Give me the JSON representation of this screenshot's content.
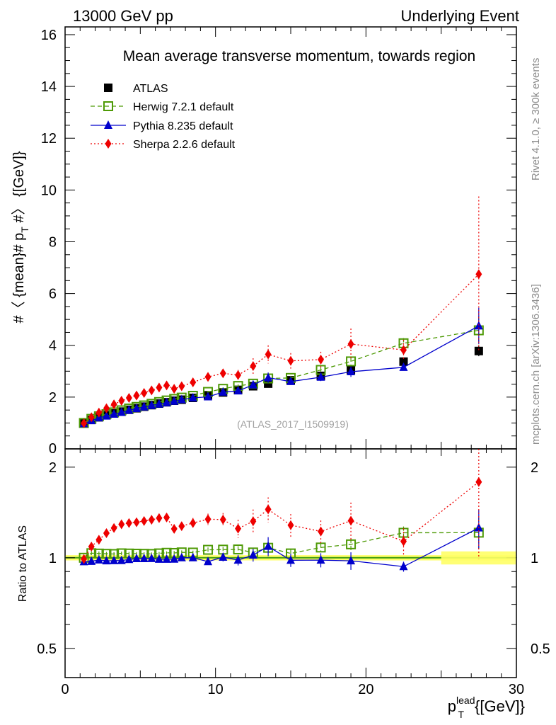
{
  "header": {
    "left": "13000 GeV pp",
    "right": "Underlying Event",
    "title": "Mean average transverse momentum, towards region",
    "watermark": "(ATLAS_2017_I1509919)",
    "side_top": "Rivet 4.1.0, ≥ 300k events",
    "side_bottom": "mcplots.cern.ch [arXiv:1306.3436]"
  },
  "chart_data": {
    "type": "scatter",
    "xlabel": "p_T^lead [GeV]",
    "xlabel_base": "p",
    "xlabel_sub": "T",
    "xlabel_sup": "lead",
    "xlabel_unit": "{[GeV]}",
    "ylabel": "#〈 {mean}# p_T #〉 [GeV]",
    "ylabel_a": "#〈 {mean}# p",
    "ylabel_sub": "T",
    "ylabel_b": " #〉 {[GeV]}",
    "ratio_ylabel": "Ratio to ATLAS",
    "xlim": [
      0,
      30
    ],
    "ylim": [
      0,
      16.3
    ],
    "ratio_ylim": [
      0.4,
      2.3
    ],
    "x_ticks": [
      0,
      10,
      20,
      30
    ],
    "y_ticks": [
      2,
      4,
      6,
      8,
      10,
      12,
      14,
      16
    ],
    "y_zero_label": "0",
    "ratio_ticks": [
      0.5,
      1,
      2
    ],
    "ratio_tick_labels": [
      "0.5",
      "1",
      "2"
    ],
    "x": [
      1.25,
      1.75,
      2.25,
      2.75,
      3.25,
      3.75,
      4.25,
      4.75,
      5.25,
      5.75,
      6.25,
      6.75,
      7.25,
      7.75,
      8.5,
      9.5,
      10.5,
      11.5,
      12.5,
      13.5,
      15.0,
      17.0,
      19.0,
      22.5,
      27.5
    ],
    "series": [
      {
        "name": "ATLAS",
        "color": "#000000",
        "marker": "square-filled",
        "values": [
          1.0,
          1.12,
          1.22,
          1.3,
          1.37,
          1.44,
          1.51,
          1.57,
          1.63,
          1.69,
          1.75,
          1.8,
          1.86,
          1.9,
          1.97,
          2.07,
          2.18,
          2.28,
          2.42,
          2.52,
          2.65,
          2.82,
          3.05,
          3.37,
          3.78
        ],
        "errors": [
          0.02,
          0.02,
          0.02,
          0.02,
          0.02,
          0.02,
          0.02,
          0.02,
          0.02,
          0.02,
          0.02,
          0.02,
          0.02,
          0.02,
          0.02,
          0.03,
          0.03,
          0.04,
          0.05,
          0.06,
          0.07,
          0.09,
          0.12,
          0.15,
          0.2
        ]
      },
      {
        "name": "Herwig 7.2.1 default",
        "color": "#4e9a06",
        "marker": "square-open",
        "line": "dashed",
        "values": [
          1.0,
          1.16,
          1.26,
          1.34,
          1.41,
          1.49,
          1.56,
          1.62,
          1.68,
          1.74,
          1.81,
          1.87,
          1.93,
          1.98,
          2.05,
          2.2,
          2.32,
          2.43,
          2.52,
          2.72,
          2.74,
          3.05,
          3.38,
          4.08,
          4.58
        ],
        "errors": [
          0.02,
          0.02,
          0.02,
          0.02,
          0.02,
          0.02,
          0.02,
          0.02,
          0.02,
          0.02,
          0.02,
          0.02,
          0.03,
          0.03,
          0.03,
          0.04,
          0.05,
          0.06,
          0.07,
          0.1,
          0.08,
          0.1,
          0.15,
          0.2,
          0.55
        ]
      },
      {
        "name": "Pythia 8.235 default",
        "color": "#0000cc",
        "marker": "triangle-filled",
        "line": "solid",
        "values": [
          0.97,
          1.09,
          1.2,
          1.27,
          1.34,
          1.41,
          1.49,
          1.56,
          1.62,
          1.68,
          1.73,
          1.78,
          1.84,
          1.9,
          1.97,
          2.01,
          2.19,
          2.24,
          2.47,
          2.75,
          2.6,
          2.77,
          2.98,
          3.15,
          4.75
        ],
        "errors": [
          0.02,
          0.02,
          0.02,
          0.02,
          0.02,
          0.02,
          0.02,
          0.02,
          0.02,
          0.02,
          0.03,
          0.03,
          0.03,
          0.03,
          0.04,
          0.05,
          0.07,
          0.09,
          0.12,
          0.2,
          0.13,
          0.15,
          0.2,
          0.12,
          0.7
        ]
      },
      {
        "name": "Sherpa 2.2.6 default",
        "color": "#ee0000",
        "marker": "diamond-filled",
        "line": "dotted",
        "values": [
          0.99,
          1.22,
          1.4,
          1.57,
          1.72,
          1.86,
          1.97,
          2.06,
          2.16,
          2.26,
          2.37,
          2.45,
          2.32,
          2.42,
          2.57,
          2.78,
          2.92,
          2.85,
          3.2,
          3.65,
          3.4,
          3.45,
          4.05,
          3.82,
          6.75
        ],
        "errors": [
          0.03,
          0.03,
          0.04,
          0.04,
          0.05,
          0.05,
          0.05,
          0.06,
          0.06,
          0.06,
          0.07,
          0.07,
          0.08,
          0.08,
          0.1,
          0.12,
          0.15,
          0.2,
          0.3,
          0.35,
          0.3,
          0.3,
          0.6,
          0.4,
          3.0
        ]
      }
    ],
    "ratio_band": {
      "color": "#ffff66",
      "edge_color": "#99e655"
    }
  }
}
